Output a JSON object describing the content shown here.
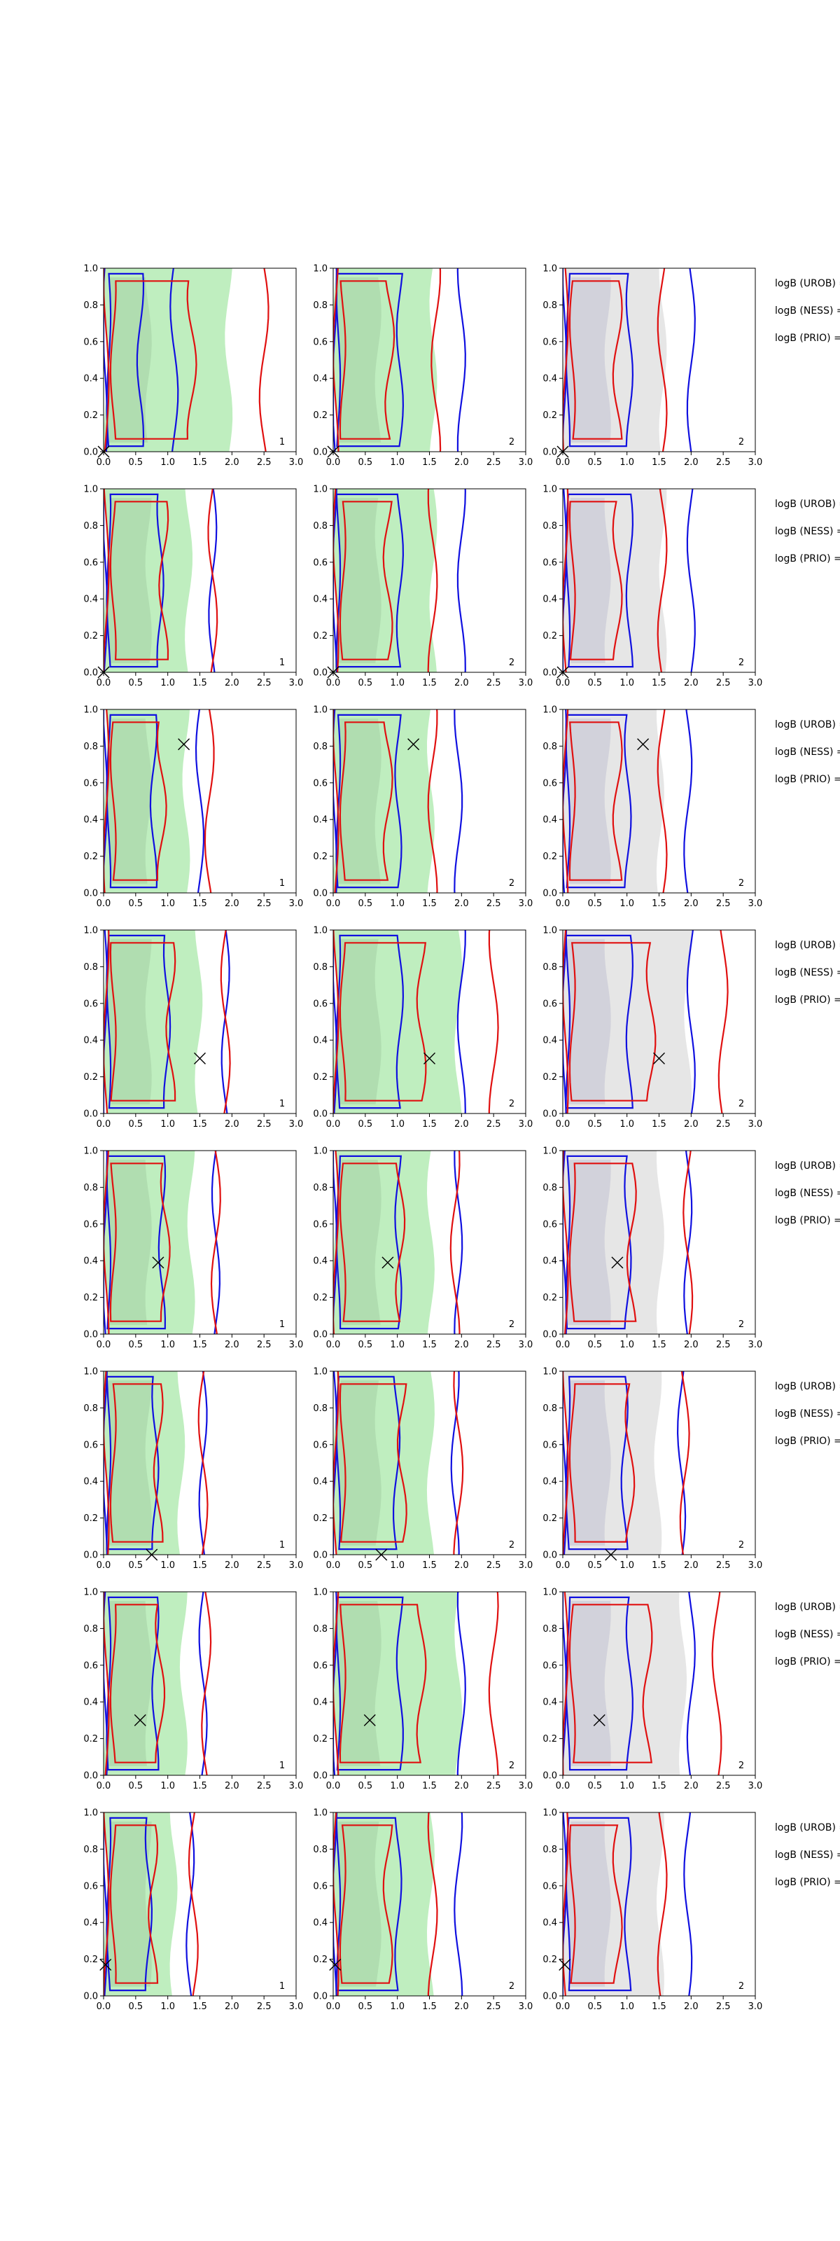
{
  "figure": {
    "rows": 8,
    "cols": 3,
    "row_annotations": [
      [
        "logB (UROB) =",
        "logB (NESS) =",
        "logB (PRIO) ="
      ],
      [
        "logB (UROB) =",
        "logB (NESS) =",
        "logB (PRIO) ="
      ],
      [
        "logB (UROB) =",
        "logB (NESS) =",
        "logB (PRIO) ="
      ],
      [
        "logB (UROB) =",
        "logB (NESS) =",
        "logB (PRIO) ="
      ],
      [
        "logB (UROB) =",
        "logB (NESS) =",
        "logB (PRIO) ="
      ],
      [
        "logB (UROB) =",
        "logB (NESS) =",
        "logB (PRIO) ="
      ],
      [
        "logB (UROB) =",
        "logB (NESS) =",
        "logB (PRIO) ="
      ],
      [
        "logB (UROB) =",
        "logB (NESS) =",
        "logB (PRIO) ="
      ]
    ],
    "colors": {
      "blue_contour": "#1010e0",
      "red_contour": "#e01010",
      "green_fill": "#bfeebf",
      "green_fill_inner": "#a9d6a9",
      "grey_fill": "#e6e6e6",
      "grey_fill_inner": "#c9c9d6",
      "axis": "#000000"
    }
  },
  "chart_data": {
    "type": "contour-grid",
    "xlim": [
      0,
      3
    ],
    "ylim": [
      0,
      1
    ],
    "xticks": [
      "0.0",
      "0.5",
      "1.0",
      "1.5",
      "2.0",
      "2.5",
      "3.0"
    ],
    "yticks": [
      "0.0",
      "0.2",
      "0.4",
      "0.6",
      "0.8",
      "1.0"
    ],
    "grid": false,
    "panel_labels": [
      "1",
      "2",
      "2"
    ],
    "markers": [
      {
        "x": 0.0,
        "y": 0.0
      },
      {
        "x": 0.0,
        "y": 0.0
      },
      {
        "x": 1.25,
        "y": 0.81
      },
      {
        "x": 1.5,
        "y": 0.3
      },
      {
        "x": 0.85,
        "y": 0.39
      },
      {
        "x": 0.75,
        "y": 0.0
      },
      {
        "x": 0.57,
        "y": 0.3
      },
      {
        "x": 0.03,
        "y": 0.17
      }
    ],
    "blue_extent_x": [
      [
        1.1,
        2.0,
        2.0
      ],
      [
        1.7,
        2.0,
        2.0
      ],
      [
        1.5,
        1.95,
        1.95
      ],
      [
        1.9,
        2.0,
        2.0
      ],
      [
        1.75,
        1.95,
        1.95
      ],
      [
        1.55,
        1.9,
        1.85
      ],
      [
        1.55,
        2.0,
        2.0
      ],
      [
        1.35,
        1.95,
        1.95
      ]
    ],
    "red_extent_x": [
      [
        2.5,
        1.6,
        1.55
      ],
      [
        1.7,
        1.55,
        1.55
      ],
      [
        1.65,
        1.55,
        1.55
      ],
      [
        1.9,
        2.5,
        2.5
      ],
      [
        1.75,
        1.9,
        1.95
      ],
      [
        1.55,
        1.95,
        1.9
      ],
      [
        1.6,
        2.5,
        2.4
      ],
      [
        1.4,
        1.55,
        1.55
      ]
    ]
  }
}
